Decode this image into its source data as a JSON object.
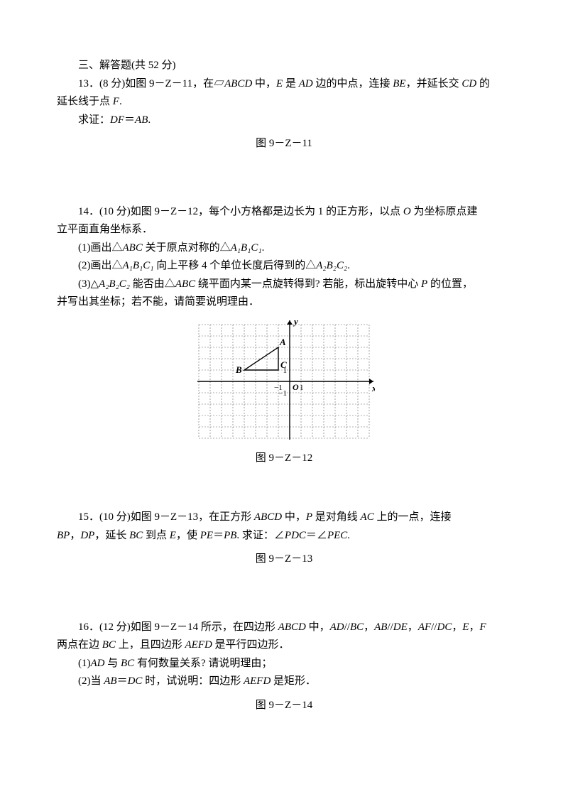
{
  "section": {
    "title": "三、解答题(共 52 分)"
  },
  "q13": {
    "line1_pre": "13．(8 分)如图 9－Z－11，在▱",
    "abcd": "ABCD",
    "line1_mid": " 中，",
    "e": "E",
    "line1_mid2": " 是 ",
    "ad": "AD",
    "line1_mid3": " 边的中点，连接 ",
    "be": "BE",
    "line1_mid4": "，并延长交 ",
    "cd": "CD",
    "line1_end": " 的",
    "line2_pre": "延长线于点 ",
    "f": "F",
    "line2_end": ".",
    "prove_pre": "求证：",
    "df": "DF",
    "eq": "＝",
    "ab": "AB",
    "prove_end": ".",
    "figure": "图 9－Z－11"
  },
  "q14": {
    "line1": "14．(10 分)如图 9－Z－12，每个小方格都是边长为 1 的正方形，以点 ",
    "o": "O",
    "line1_end": " 为坐标原点建",
    "line2": "立平面直角坐标系．",
    "sub1_pre": "(1)画出△",
    "abc": "ABC",
    "sub1_mid": " 关于原点对称的△",
    "a1b1c1": "A₁B₁C₁",
    "sub1_end": ".",
    "sub2_pre": "(2)画出△",
    "sub2_mid": " 向上平移 4 个单位长度后得到的△",
    "a2b2c2": "A₂B₂C₂",
    "sub2_end": ".",
    "sub3_pre": "(3)△",
    "sub3_mid": " 能否由△",
    "sub3_mid2": " 绕平面内某一点旋转得到? 若能，标出旋转中心 ",
    "p": "P",
    "sub3_end": " 的位置，",
    "sub3_line2": "并写出其坐标；若不能，请简要说明理由．",
    "figure": "图 9－Z－12"
  },
  "q15": {
    "line1_pre": "15．(10 分)如图 9－Z－13，在正方形 ",
    "abcd": "ABCD",
    "line1_mid": " 中，",
    "p": "P",
    "line1_mid2": " 是对角线 ",
    "ac": "AC",
    "line1_end": " 上的一点，连接",
    "line2_pre": "",
    "bp": "BP",
    "comma": "，",
    "dp": "DP",
    "line2_mid": "，延长 ",
    "bc": "BC",
    "line2_mid2": " 到点 ",
    "e": "E",
    "line2_mid3": "，使 ",
    "pe": "PE",
    "eq": "＝",
    "pb": "PB",
    "line2_mid4": ". 求证：∠",
    "pdc": "PDC",
    "eq2": "＝∠",
    "pec": "PEC",
    "line2_end": ".",
    "figure": "图 9－Z－13"
  },
  "q16": {
    "line1_pre": "16．(12 分)如图 9－Z－14 所示，在四边形 ",
    "abcd": "ABCD",
    "line1_mid": " 中，",
    "ad": "AD",
    "par": "//",
    "bc": "BC",
    "comma": "，",
    "ab": "AB",
    "de": "DE",
    "af": "AF",
    "dc": "DC",
    "e": "E",
    "f": "F",
    "line2_pre": "两点在边 ",
    "line2_mid": " 上，且四边形 ",
    "aefd": "AEFD",
    "line2_end": " 是平行四边形．",
    "sub1_pre": "(1)",
    "sub1_mid": " 与 ",
    "sub1_end": " 有何数量关系? 请说明理由；",
    "sub2_pre": "(2)当 ",
    "eq": "＝",
    "sub2_mid": " 时，试说明：四边形 ",
    "sub2_end": " 是矩形．",
    "figure": "图 9－Z－14"
  },
  "grid": {
    "cols": 15,
    "rows": 10,
    "cell_size": 16,
    "origin_col": 8,
    "origin_row": 5,
    "grid_color": "#666666",
    "axis_color": "#000000",
    "triangle": {
      "A": [
        -1,
        3
      ],
      "B": [
        -4,
        1
      ],
      "C": [
        -1,
        1
      ]
    },
    "labels": {
      "A": "A",
      "B": "B",
      "C": "C",
      "O": "O",
      "x": "x",
      "y": "y",
      "one": "1",
      "neg_one_x": "−1",
      "neg_one_y": "−1"
    }
  }
}
